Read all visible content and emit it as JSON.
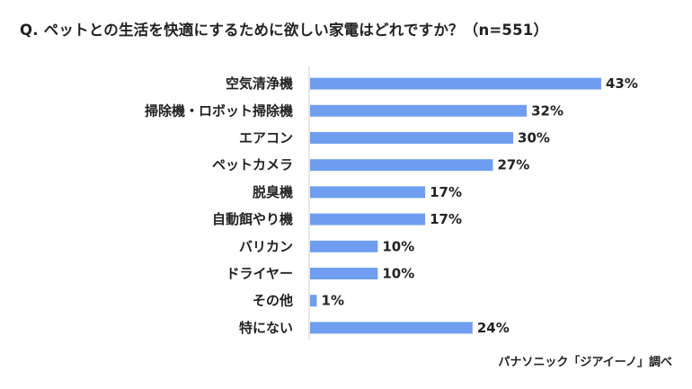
{
  "title": "Q. ペットとの生活を快適にするために欲しい家電はどれですか？（n=551）",
  "source": "パナソニック「ジアイーノ」調べ",
  "chart_data": {
    "type": "bar",
    "orientation": "horizontal",
    "categories": [
      "空気清浄機",
      "掃除機・ロボット掃除機",
      "エアコン",
      "ペットカメラ",
      "脱臭機",
      "自動餌やり機",
      "バリカン",
      "ドライヤー",
      "その他",
      "特にない"
    ],
    "values": [
      43,
      32,
      30,
      27,
      17,
      17,
      10,
      10,
      1,
      24
    ],
    "value_labels": [
      "43%",
      "32%",
      "30%",
      "27%",
      "17%",
      "17%",
      "10%",
      "10%",
      "1%",
      "24%"
    ],
    "xlim": [
      0,
      50
    ],
    "grid": false,
    "bar_color": "#6f9ef0"
  }
}
